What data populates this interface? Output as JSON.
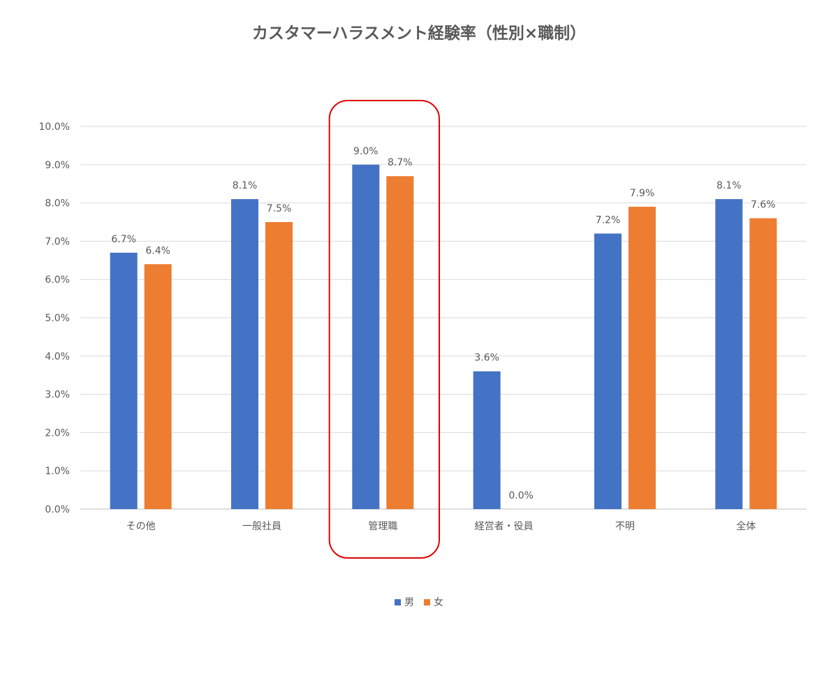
{
  "chart_data": {
    "type": "bar",
    "title": "カスタマーハラスメント経験率（性別×職制）",
    "categories": [
      "その他",
      "一般社員",
      "管理職",
      "経営者・役員",
      "不明",
      "全体"
    ],
    "series": [
      {
        "name": "男",
        "color": "#4472C4",
        "values": [
          6.7,
          8.1,
          9.0,
          3.6,
          7.2,
          8.1
        ],
        "labels": [
          "6.7%",
          "8.1%",
          "9.0%",
          "3.6%",
          "7.2%",
          "8.1%"
        ]
      },
      {
        "name": "女",
        "color": "#ED7D31",
        "values": [
          6.4,
          7.5,
          8.7,
          0.0,
          7.9,
          7.6
        ],
        "labels": [
          "6.4%",
          "7.5%",
          "8.7%",
          "0.0%",
          "7.9%",
          "7.6%"
        ]
      }
    ],
    "ylim": [
      0,
      10
    ],
    "yticks": [
      "0.0%",
      "1.0%",
      "2.0%",
      "3.0%",
      "4.0%",
      "5.0%",
      "6.0%",
      "7.0%",
      "8.0%",
      "9.0%",
      "10.0%"
    ],
    "grid": true,
    "legend_position": "bottom",
    "highlight": {
      "category": "管理職",
      "color": "#E00000"
    }
  }
}
